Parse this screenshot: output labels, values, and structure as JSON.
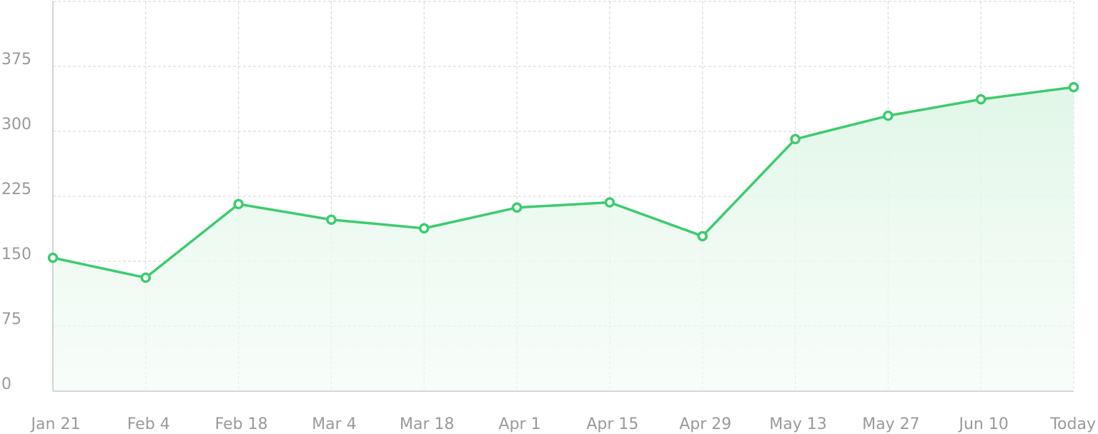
{
  "chart_data": {
    "type": "area",
    "title": "",
    "xlabel": "",
    "ylabel": "",
    "categories": [
      "Jan 21",
      "Feb 4",
      "Feb 18",
      "Mar 4",
      "Mar 18",
      "Apr 1",
      "Apr 15",
      "Apr 29",
      "May 13",
      "May 27",
      "Jun 10",
      "Today"
    ],
    "series": [
      {
        "values": [
          154,
          131,
          216,
          198,
          188,
          212,
          218,
          179,
          291,
          318,
          337,
          351
        ]
      }
    ],
    "yticks": [
      0,
      75,
      150,
      225,
      300,
      375
    ],
    "ylim": [
      0,
      450
    ],
    "grid": true,
    "legend": "none",
    "colors": {
      "line": "#3ccc6e",
      "fill": "#e6f8ec",
      "grid": "#d4d4d4",
      "tick_text": "#9a9a9a"
    }
  }
}
